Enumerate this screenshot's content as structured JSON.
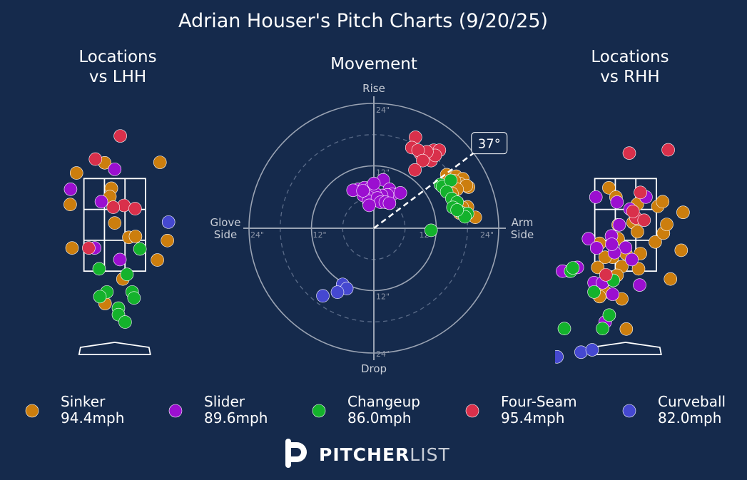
{
  "title": "Adrian Houser's Pitch Charts (9/20/25)",
  "colors": {
    "background": "#152a4c",
    "text": "#ffffff",
    "axis_text": "#c8cdd6",
    "Sinker": "#cc7e0e",
    "Slider": "#9b0fd0",
    "Changeup": "#14b22c",
    "Four-Seam": "#d9304b",
    "Curveball": "#4548d0"
  },
  "panels": {
    "lhh_title": "Locations\nvs LHH",
    "movement_title": "Movement",
    "rhh_title": "Locations\nvs RHH"
  },
  "movement_labels": {
    "top": "Rise",
    "bottom": "Drop",
    "left": "Glove\nSide",
    "right": "Arm\nSide",
    "ring_labels": [
      "12\"",
      "24\""
    ],
    "arm_angle": "37°"
  },
  "legend": [
    {
      "name": "Sinker",
      "speed": "94.4mph"
    },
    {
      "name": "Slider",
      "speed": "89.6mph"
    },
    {
      "name": "Changeup",
      "speed": "86.0mph"
    },
    {
      "name": "Four-Seam",
      "speed": "95.4mph"
    },
    {
      "name": "Curveball",
      "speed": "82.0mph"
    }
  ],
  "brand": {
    "bold": "PITCHER",
    "light": "LIST"
  },
  "chart_data": [
    {
      "type": "scatter",
      "title": "Locations vs LHH",
      "units": "feet (catcher's view)",
      "xlim": [
        -1.9,
        2.1
      ],
      "ylim": [
        -0.5,
        5.2
      ],
      "strike_zone": {
        "x": [
          -0.83,
          0.83
        ],
        "z": [
          1.5,
          3.5
        ]
      },
      "series": [
        {
          "name": "Sinker",
          "points": [
            [
              -1.03,
              3.62
            ],
            [
              -0.27,
              3.84
            ],
            [
              -0.09,
              3.29
            ],
            [
              -0.13,
              3.11
            ],
            [
              1.22,
              3.85
            ],
            [
              -1.2,
              2.94
            ],
            [
              0.0,
              2.54
            ],
            [
              0.38,
              2.23
            ],
            [
              0.56,
              2.25
            ],
            [
              -1.15,
              2.0
            ],
            [
              1.42,
              2.16
            ],
            [
              0.22,
              1.33
            ],
            [
              1.15,
              1.74
            ],
            [
              -0.26,
              0.8
            ]
          ]
        },
        {
          "name": "Slider",
          "points": [
            [
              0.0,
              3.7
            ],
            [
              -1.19,
              3.27
            ],
            [
              -0.36,
              3.0
            ],
            [
              -0.54,
              2.0
            ],
            [
              0.14,
              1.75
            ]
          ]
        },
        {
          "name": "Changeup",
          "points": [
            [
              0.68,
              1.98
            ],
            [
              -0.42,
              1.55
            ],
            [
              0.33,
              1.43
            ],
            [
              -0.21,
              1.05
            ],
            [
              0.47,
              1.05
            ],
            [
              -0.4,
              0.95
            ],
            [
              0.52,
              0.92
            ],
            [
              0.1,
              0.7
            ],
            [
              0.1,
              0.56
            ],
            [
              0.28,
              0.4
            ]
          ]
        },
        {
          "name": "Four-Seam",
          "points": [
            [
              0.15,
              4.42
            ],
            [
              -0.52,
              3.92
            ],
            [
              0.25,
              2.92
            ],
            [
              0.55,
              2.85
            ],
            [
              -0.04,
              2.88
            ],
            [
              -0.7,
              2.0
            ]
          ]
        },
        {
          "name": "Curveball",
          "points": [
            [
              1.45,
              2.56
            ]
          ]
        }
      ]
    },
    {
      "type": "scatter",
      "title": "Movement",
      "units": "inches (x: + arm side, y: + rise)",
      "xlim": [
        -24,
        24
      ],
      "ylim": [
        -24,
        24
      ],
      "rings": [
        6,
        12,
        18,
        24
      ],
      "arm_angle_deg": 37,
      "series": [
        {
          "name": "Sinker",
          "points": [
            [
              14,
              10.3
            ],
            [
              15.8,
              10.0
            ],
            [
              17.1,
              9.5
            ],
            [
              16.5,
              8.6
            ],
            [
              15.5,
              9.1
            ],
            [
              18.2,
              7.9
            ],
            [
              17.8,
              8.2
            ],
            [
              16.0,
              7.5
            ],
            [
              15.0,
              6.7
            ],
            [
              18.0,
              4.1
            ],
            [
              19.5,
              2.1
            ],
            [
              16.5,
              2.9
            ],
            [
              17.0,
              4.0
            ]
          ]
        },
        {
          "name": "Slider",
          "points": [
            [
              -3.0,
              7.5
            ],
            [
              -1.8,
              7.8
            ],
            [
              -0.4,
              8.0
            ],
            [
              1.8,
              9.3
            ],
            [
              3.0,
              7.5
            ],
            [
              3.5,
              6.5
            ],
            [
              2.6,
              6.4
            ],
            [
              1.5,
              6.3
            ],
            [
              0.2,
              6.7
            ],
            [
              -1.0,
              6.0
            ],
            [
              -2.0,
              6.3
            ],
            [
              -1.0,
              5.2
            ],
            [
              0.7,
              5.8
            ],
            [
              1.3,
              5.0
            ],
            [
              2.2,
              5.0
            ],
            [
              -0.9,
              4.4
            ],
            [
              3.0,
              4.8
            ],
            [
              5.1,
              6.8
            ],
            [
              -4.0,
              7.3
            ],
            [
              0.0,
              8.6
            ],
            [
              -2.1,
              7.2
            ]
          ]
        },
        {
          "name": "Changeup",
          "points": [
            [
              12.8,
              8.4
            ],
            [
              13.2,
              8.0
            ],
            [
              14.8,
              9.2
            ],
            [
              14.0,
              7.0
            ],
            [
              15.0,
              5.7
            ],
            [
              16.0,
              5.0
            ],
            [
              15.2,
              4.0
            ],
            [
              16.8,
              3.0
            ],
            [
              18.0,
              2.8
            ],
            [
              17.5,
              2.2
            ],
            [
              16.0,
              3.5
            ],
            [
              11.0,
              -0.4
            ]
          ]
        },
        {
          "name": "Four-Seam",
          "points": [
            [
              8.0,
              17.5
            ],
            [
              7.3,
              15.5
            ],
            [
              9.0,
              14.3
            ],
            [
              10.5,
              14.0
            ],
            [
              11.0,
              13.0
            ],
            [
              11.5,
              15.0
            ],
            [
              12.6,
              15.0
            ],
            [
              11.8,
              14.0
            ],
            [
              10.2,
              14.7
            ],
            [
              8.5,
              15.0
            ],
            [
              9.4,
              13.0
            ],
            [
              7.9,
              11.2
            ]
          ]
        },
        {
          "name": "Curveball",
          "points": [
            [
              -6.0,
              -10.8
            ],
            [
              -5.2,
              -11.6
            ],
            [
              -7.0,
              -12.3
            ],
            [
              -9.8,
              -13.0
            ]
          ]
        }
      ]
    },
    {
      "type": "scatter",
      "title": "Locations vs RHH",
      "units": "feet (catcher's view)",
      "xlim": [
        -1.9,
        2.1
      ],
      "ylim": [
        -0.5,
        5.2
      ],
      "strike_zone": {
        "x": [
          -0.83,
          0.83
        ],
        "z": [
          1.5,
          3.5
        ]
      },
      "series": [
        {
          "name": "Sinker",
          "points": [
            [
              -0.45,
              3.3
            ],
            [
              -0.26,
              3.1
            ],
            [
              0.32,
              2.95
            ],
            [
              0.87,
              2.9
            ],
            [
              1.0,
              3.0
            ],
            [
              -0.2,
              2.2
            ],
            [
              -0.7,
              2.1
            ],
            [
              -0.2,
              2.5
            ],
            [
              0.2,
              2.55
            ],
            [
              0.32,
              2.35
            ],
            [
              0.4,
              1.88
            ],
            [
              0.8,
              2.13
            ],
            [
              1.02,
              2.32
            ],
            [
              -0.35,
              1.8
            ],
            [
              -0.1,
              1.6
            ],
            [
              0.35,
              1.55
            ],
            [
              1.21,
              1.33
            ],
            [
              1.5,
              1.95
            ],
            [
              1.11,
              2.51
            ],
            [
              1.55,
              2.77
            ],
            [
              -0.55,
              1.05
            ],
            [
              -0.7,
              0.95
            ],
            [
              -0.1,
              0.9
            ],
            [
              -0.23,
              1.41
            ],
            [
              -0.75,
              1.58
            ],
            [
              -0.55,
              1.8
            ],
            [
              0.01,
              1.88
            ],
            [
              0.02,
              0.25
            ]
          ]
        },
        {
          "name": "Slider",
          "points": [
            [
              -0.8,
              3.1
            ],
            [
              -0.23,
              2.99
            ],
            [
              0.55,
              3.1
            ],
            [
              0.12,
              2.84
            ],
            [
              -0.17,
              2.5
            ],
            [
              -0.38,
              2.26
            ],
            [
              -1.0,
              2.2
            ],
            [
              -0.78,
              2.0
            ],
            [
              0.0,
              2.01
            ],
            [
              -0.3,
              1.9
            ],
            [
              0.17,
              1.75
            ],
            [
              0.38,
              1.2
            ],
            [
              -0.55,
              1.3
            ],
            [
              -1.5,
              1.5
            ],
            [
              -1.7,
              1.5
            ],
            [
              -0.85,
              1.25
            ],
            [
              -0.62,
              1.25
            ],
            [
              -0.55,
              0.4
            ],
            [
              -0.35,
              1.0
            ],
            [
              -0.37,
              2.08
            ],
            [
              -1.3,
              1.58
            ]
          ]
        },
        {
          "name": "Changeup",
          "points": [
            [
              -0.33,
              1.3
            ],
            [
              -0.85,
              1.05
            ],
            [
              -0.44,
              0.55
            ],
            [
              -0.62,
              0.26
            ],
            [
              -1.48,
              1.5
            ],
            [
              -1.65,
              0.26
            ],
            [
              -1.42,
              1.57
            ]
          ]
        },
        {
          "name": "Four-Seam",
          "points": [
            [
              0.1,
              4.05
            ],
            [
              1.15,
              4.12
            ],
            [
              0.28,
              2.65
            ],
            [
              0.5,
              2.6
            ],
            [
              0.2,
              2.79
            ],
            [
              -0.53,
              1.42
            ],
            [
              0.4,
              3.2
            ]
          ]
        },
        {
          "name": "Curveball",
          "points": [
            [
              -1.2,
              -0.25
            ],
            [
              -0.9,
              -0.2
            ],
            [
              -1.85,
              -0.35
            ]
          ]
        }
      ]
    }
  ]
}
